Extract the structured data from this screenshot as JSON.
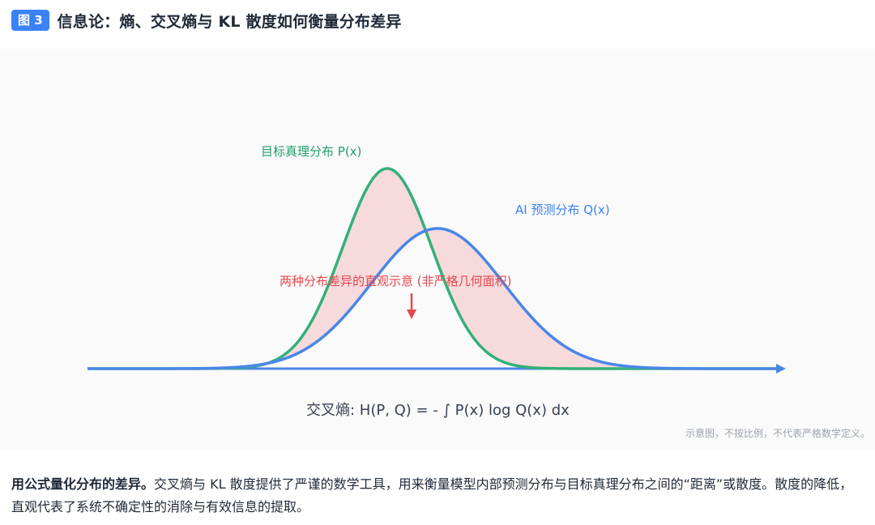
{
  "header": {
    "badge": "图 3",
    "title": "信息论：熵、交叉熵与 KL 散度如何衡量分布差异"
  },
  "diagram": {
    "p_label": "目标真理分布 P(x)",
    "q_label": "AI 预测分布 Q(x)",
    "diff_label": "两种分布差异的直观示意 (非严格几何面积)",
    "formula": "交叉熵: H(P, Q) = -  ∫  P(x) log Q(x) dx",
    "note": "示意图，不按比例，不代表严格数学定义。",
    "colors": {
      "p_curve": "#33b07a",
      "q_curve": "#4a86e8",
      "diff_fill": "#f6d4d6",
      "diff_arrow": "#e5484d",
      "axis": "#4a86e8"
    }
  },
  "caption": {
    "bold": "用公式量化分布的差异。",
    "text": "交叉熵与 KL 散度提供了严谨的数学工具，用来衡量模型内部预测分布与目标真理分布之间的“距离”或散度。散度的降低，直观代表了系统不确定性的消除与有效信息的提取。"
  }
}
